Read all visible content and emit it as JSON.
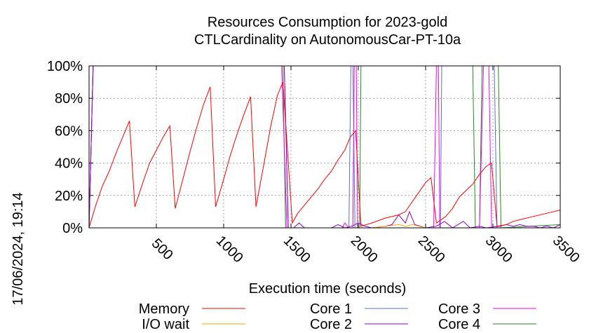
{
  "chart_data": {
    "type": "line",
    "title_lines": [
      "Resources Consumption for 2023-gold",
      "CTLCardinality on AutonomousCar-PT-10a"
    ],
    "xlabel": "Execution time (seconds)",
    "ylabel": "",
    "side_label": "17/06/2024, 19:14",
    "xlim": [
      0,
      3500
    ],
    "ylim": [
      0,
      100
    ],
    "x_ticks": [
      500,
      1000,
      1500,
      2000,
      2500,
      3000,
      3500
    ],
    "y_ticks": [
      {
        "value": 0,
        "label": "0%"
      },
      {
        "value": 20,
        "label": "20%"
      },
      {
        "value": 40,
        "label": "40%"
      },
      {
        "value": 60,
        "label": "60%"
      },
      {
        "value": 80,
        "label": "80%"
      },
      {
        "value": 100,
        "label": "100%"
      }
    ],
    "grid": true,
    "legend_position": "bottom",
    "series": [
      {
        "name": "Memory",
        "color": "#ff0000",
        "points": [
          [
            0,
            0
          ],
          [
            50,
            14
          ],
          [
            100,
            26
          ],
          [
            150,
            35
          ],
          [
            200,
            46
          ],
          [
            250,
            56
          ],
          [
            300,
            66
          ],
          [
            340,
            13
          ],
          [
            400,
            28
          ],
          [
            450,
            40
          ],
          [
            500,
            48
          ],
          [
            550,
            56
          ],
          [
            600,
            63
          ],
          [
            640,
            12
          ],
          [
            700,
            31
          ],
          [
            750,
            47
          ],
          [
            800,
            62
          ],
          [
            850,
            76
          ],
          [
            900,
            87
          ],
          [
            940,
            13
          ],
          [
            1000,
            30
          ],
          [
            1050,
            45
          ],
          [
            1100,
            58
          ],
          [
            1150,
            70
          ],
          [
            1200,
            81
          ],
          [
            1240,
            13
          ],
          [
            1300,
            40
          ],
          [
            1350,
            63
          ],
          [
            1400,
            82
          ],
          [
            1440,
            90
          ],
          [
            1510,
            3
          ],
          [
            1550,
            9
          ],
          [
            1600,
            14
          ],
          [
            1650,
            19
          ],
          [
            1700,
            24
          ],
          [
            1750,
            30
          ],
          [
            1800,
            35
          ],
          [
            1850,
            42
          ],
          [
            1900,
            48
          ],
          [
            1940,
            56
          ],
          [
            1980,
            60
          ],
          [
            2020,
            1
          ],
          [
            2100,
            3
          ],
          [
            2200,
            6
          ],
          [
            2300,
            8
          ],
          [
            2350,
            10
          ],
          [
            2400,
            16
          ],
          [
            2450,
            22
          ],
          [
            2500,
            28
          ],
          [
            2540,
            31
          ],
          [
            2580,
            3
          ],
          [
            2650,
            7
          ],
          [
            2700,
            12
          ],
          [
            2750,
            19
          ],
          [
            2800,
            23
          ],
          [
            2850,
            27
          ],
          [
            2900,
            33
          ],
          [
            2950,
            38
          ],
          [
            2990,
            40
          ],
          [
            3030,
            1
          ],
          [
            3100,
            2
          ],
          [
            3150,
            4
          ],
          [
            3200,
            5
          ],
          [
            3300,
            7
          ],
          [
            3400,
            9
          ],
          [
            3500,
            11
          ]
        ]
      },
      {
        "name": "I/O wait",
        "color": "#ffa500",
        "points": [
          [
            0,
            0
          ],
          [
            2100,
            0
          ],
          [
            2200,
            1
          ],
          [
            2300,
            2
          ],
          [
            2350,
            1
          ],
          [
            2400,
            2
          ],
          [
            2450,
            1
          ],
          [
            2500,
            0
          ],
          [
            3500,
            0
          ]
        ]
      },
      {
        "name": "Core 1",
        "color": "#5a6fd6",
        "points": [
          [
            0,
            0
          ],
          [
            30,
            100
          ],
          [
            1450,
            100
          ],
          [
            1480,
            0
          ],
          [
            1930,
            0
          ],
          [
            1945,
            100
          ],
          [
            1960,
            100
          ],
          [
            1975,
            0
          ],
          [
            2610,
            0
          ],
          [
            2620,
            100
          ],
          [
            3010,
            100
          ],
          [
            3030,
            0
          ],
          [
            3500,
            0
          ]
        ]
      },
      {
        "name": "Core 2",
        "color": "#9400d3",
        "points": [
          [
            0,
            0
          ],
          [
            30,
            100
          ],
          [
            1450,
            100
          ],
          [
            1480,
            0
          ],
          [
            1520,
            0
          ],
          [
            1560,
            3
          ],
          [
            1600,
            0
          ],
          [
            1800,
            0
          ],
          [
            1850,
            2
          ],
          [
            1900,
            0
          ],
          [
            1950,
            1
          ],
          [
            2000,
            3
          ],
          [
            2050,
            1
          ],
          [
            2100,
            0
          ],
          [
            2200,
            1
          ],
          [
            2250,
            2
          ],
          [
            2300,
            8
          ],
          [
            2350,
            3
          ],
          [
            2380,
            10
          ],
          [
            2420,
            2
          ],
          [
            2500,
            0
          ],
          [
            2580,
            1
          ],
          [
            2640,
            4
          ],
          [
            2700,
            0
          ],
          [
            2780,
            4
          ],
          [
            2830,
            0
          ],
          [
            2900,
            1
          ],
          [
            2950,
            0
          ],
          [
            3050,
            1
          ],
          [
            3100,
            2
          ],
          [
            3150,
            1
          ],
          [
            3200,
            2
          ],
          [
            3250,
            1
          ],
          [
            3300,
            1
          ],
          [
            3350,
            0
          ],
          [
            3400,
            1
          ],
          [
            3450,
            0
          ],
          [
            3500,
            2
          ]
        ]
      },
      {
        "name": "Core 3",
        "color": "#ff00ff",
        "points": [
          [
            0,
            0
          ],
          [
            30,
            100
          ],
          [
            1430,
            100
          ],
          [
            1470,
            0
          ],
          [
            1880,
            0
          ],
          [
            1900,
            3
          ],
          [
            1930,
            0
          ],
          [
            1960,
            0
          ],
          [
            1970,
            100
          ],
          [
            1985,
            100
          ],
          [
            1995,
            0
          ],
          [
            2560,
            0
          ],
          [
            2580,
            100
          ],
          [
            2595,
            100
          ],
          [
            2605,
            0
          ],
          [
            2900,
            0
          ],
          [
            2930,
            100
          ],
          [
            2970,
            100
          ],
          [
            2990,
            0
          ],
          [
            3500,
            0
          ]
        ]
      },
      {
        "name": "Core 4",
        "color": "#228b22",
        "points": [
          [
            0,
            0
          ],
          [
            30,
            100
          ],
          [
            1440,
            100
          ],
          [
            1460,
            0
          ],
          [
            2010,
            0
          ],
          [
            2020,
            100
          ],
          [
            2850,
            100
          ],
          [
            2870,
            0
          ],
          [
            2900,
            0
          ],
          [
            2920,
            100
          ],
          [
            3040,
            100
          ],
          [
            3060,
            0
          ],
          [
            3500,
            2
          ]
        ]
      }
    ]
  }
}
